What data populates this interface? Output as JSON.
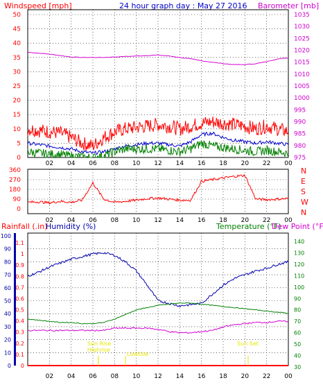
{
  "header": {
    "left_label": "Windspeed [mph]",
    "title": "24 hour graph day : May 27 2016",
    "right_label": "Barometer [mb]"
  },
  "x_ticks": [
    "02",
    "04",
    "06",
    "08",
    "10",
    "12",
    "14",
    "16",
    "18",
    "20",
    "22",
    "00"
  ],
  "chart_data": [
    {
      "type": "line",
      "name": "windspeed_barometer",
      "left_axis": {
        "label": "Windspeed [mph]",
        "ticks": [
          0,
          5,
          10,
          15,
          20,
          25,
          30,
          35,
          40,
          45,
          50
        ],
        "range": [
          0,
          50
        ]
      },
      "right_axis": {
        "label": "Barometer [mb]",
        "ticks": [
          975,
          980,
          985,
          990,
          995,
          1000,
          1005,
          1010,
          1015,
          1020,
          1025,
          1030,
          1035
        ],
        "range": [
          975,
          1035
        ]
      },
      "x": [
        0,
        1,
        2,
        3,
        4,
        5,
        6,
        7,
        8,
        9,
        10,
        11,
        12,
        13,
        14,
        15,
        16,
        17,
        18,
        19,
        20,
        21,
        22,
        23,
        24
      ],
      "series": [
        {
          "role": "barometer",
          "color": "#d100d1",
          "axis": "right",
          "values": [
            1019.2,
            1018.8,
            1018.4,
            1017.8,
            1017.2,
            1017.0,
            1017.0,
            1017.0,
            1017.2,
            1017.4,
            1017.6,
            1017.8,
            1018.0,
            1017.6,
            1017.0,
            1016.4,
            1015.6,
            1015.0,
            1014.4,
            1014.0,
            1014.0,
            1014.4,
            1015.2,
            1016.4,
            1016.8
          ]
        },
        {
          "role": "gust",
          "color": "#ff0000",
          "axis": "left",
          "values": [
            10,
            9.5,
            9,
            8.5,
            7,
            5,
            4,
            7,
            9,
            10,
            10.5,
            11,
            11.5,
            11,
            10,
            11,
            12,
            12.5,
            12,
            11.5,
            11,
            10,
            11,
            10,
            9
          ]
        },
        {
          "role": "average",
          "color": "#0000cc",
          "axis": "left",
          "values": [
            5,
            4.5,
            4,
            3.5,
            3,
            2,
            1.5,
            2,
            3,
            4,
            4.5,
            5,
            5,
            4.5,
            4,
            5.5,
            8,
            8.5,
            7,
            6,
            5.5,
            5,
            5.5,
            5,
            4.5
          ]
        },
        {
          "role": "low",
          "color": "#008000",
          "axis": "left",
          "values": [
            2,
            1.5,
            1.2,
            1,
            0.5,
            0.2,
            0,
            0.5,
            2,
            3,
            3,
            3,
            3,
            2.5,
            2,
            3,
            5,
            4,
            3.5,
            3,
            2.5,
            2,
            2.5,
            2,
            1.5
          ]
        }
      ]
    },
    {
      "type": "line",
      "name": "wind_direction",
      "left_axis": {
        "ticks": [
          0,
          90,
          180,
          270,
          360
        ],
        "range": [
          0,
          360
        ]
      },
      "right_axis": {
        "ticks": [
          "N",
          "W",
          "S",
          "E",
          "N"
        ]
      },
      "x": [
        0,
        1,
        2,
        3,
        4,
        5,
        6,
        7,
        8,
        9,
        10,
        11,
        12,
        13,
        14,
        15,
        16,
        17,
        18,
        19,
        20,
        21,
        22,
        23,
        24
      ],
      "series": [
        {
          "role": "direction",
          "color": "#ff0000",
          "values": [
            60,
            65,
            55,
            70,
            60,
            80,
            240,
            90,
            60,
            70,
            80,
            95,
            100,
            90,
            80,
            80,
            255,
            270,
            285,
            300,
            310,
            90,
            85,
            90,
            95
          ]
        }
      ]
    },
    {
      "type": "line",
      "name": "rain_humidity_temperature",
      "left_axis": {
        "label": "Humidity (%)",
        "ticks": [
          0,
          10,
          20,
          30,
          40,
          50,
          60,
          70,
          80,
          90,
          100
        ],
        "range": [
          0,
          100
        ]
      },
      "left_axis_inner": {
        "label": "Rainfall (.in)",
        "ticks": [
          0,
          0.1,
          0.2,
          0.3,
          0.4,
          0.5,
          0.6,
          0.7,
          0.8,
          0.9,
          1,
          1.1
        ],
        "range": [
          0,
          1.1
        ]
      },
      "right_axis": {
        "label": "Temperature (°F)",
        "label2": "Dew Point (°F)",
        "ticks": [
          30,
          40,
          50,
          60,
          70,
          80,
          90,
          100,
          110,
          120,
          130,
          140
        ],
        "range": [
          30,
          140
        ]
      },
      "x": [
        0,
        1,
        2,
        3,
        4,
        5,
        6,
        7,
        8,
        9,
        10,
        11,
        12,
        13,
        14,
        15,
        16,
        17,
        18,
        19,
        20,
        21,
        22,
        23,
        24
      ],
      "series": [
        {
          "role": "humidity",
          "color": "#0000aa",
          "axis": "left",
          "values": [
            69,
            72,
            76,
            79,
            82,
            84,
            86,
            87,
            85,
            80,
            73,
            62,
            50,
            48,
            46,
            47,
            48,
            55,
            62,
            67,
            70,
            73,
            75,
            78,
            80
          ]
        },
        {
          "role": "temperature",
          "color": "#008000",
          "axis": "right",
          "values": [
            72,
            71,
            70,
            69,
            69,
            68,
            68,
            69,
            72,
            76,
            80,
            82,
            84,
            85,
            86,
            86,
            85,
            84,
            83,
            82,
            81,
            80,
            79,
            78,
            77
          ]
        },
        {
          "role": "dewpoint",
          "color": "#d100d1",
          "axis": "right",
          "values": [
            62,
            62,
            62,
            62,
            62,
            62,
            62,
            62,
            64,
            64,
            64,
            64,
            63,
            61,
            60,
            60,
            61,
            62,
            65,
            67,
            68,
            69,
            69,
            70,
            70
          ]
        },
        {
          "role": "rainfall",
          "color": "#ff0000",
          "axis": "left_inner",
          "values": [
            0,
            0,
            0,
            0,
            0,
            0,
            0,
            0,
            0,
            0,
            0,
            0,
            0,
            0,
            0,
            0,
            0,
            0,
            0,
            0,
            0,
            0,
            0,
            0,
            0
          ]
        }
      ],
      "annotations": [
        {
          "text": "Sun Rise",
          "x": 6.5
        },
        {
          "text": "Highrise",
          "x": 6.5
        },
        {
          "text": "Lowtide",
          "x": 9.0
        },
        {
          "text": "Sun Set",
          "x": 20.3
        }
      ]
    }
  ],
  "bottom": {
    "rain_label": "Rainfall (.in)",
    "humidity_label": "Humidity (%)",
    "temp_label": "Temperature (°F)",
    "dew_label": "Dew Point (°F)"
  },
  "colors": {
    "grid": "#000000",
    "left_axis": "#ff0000",
    "right_axis": "#d100d1",
    "title": "#0000cc",
    "humidity": "#0000aa",
    "temp": "#008000",
    "tide": "#e6e600"
  }
}
